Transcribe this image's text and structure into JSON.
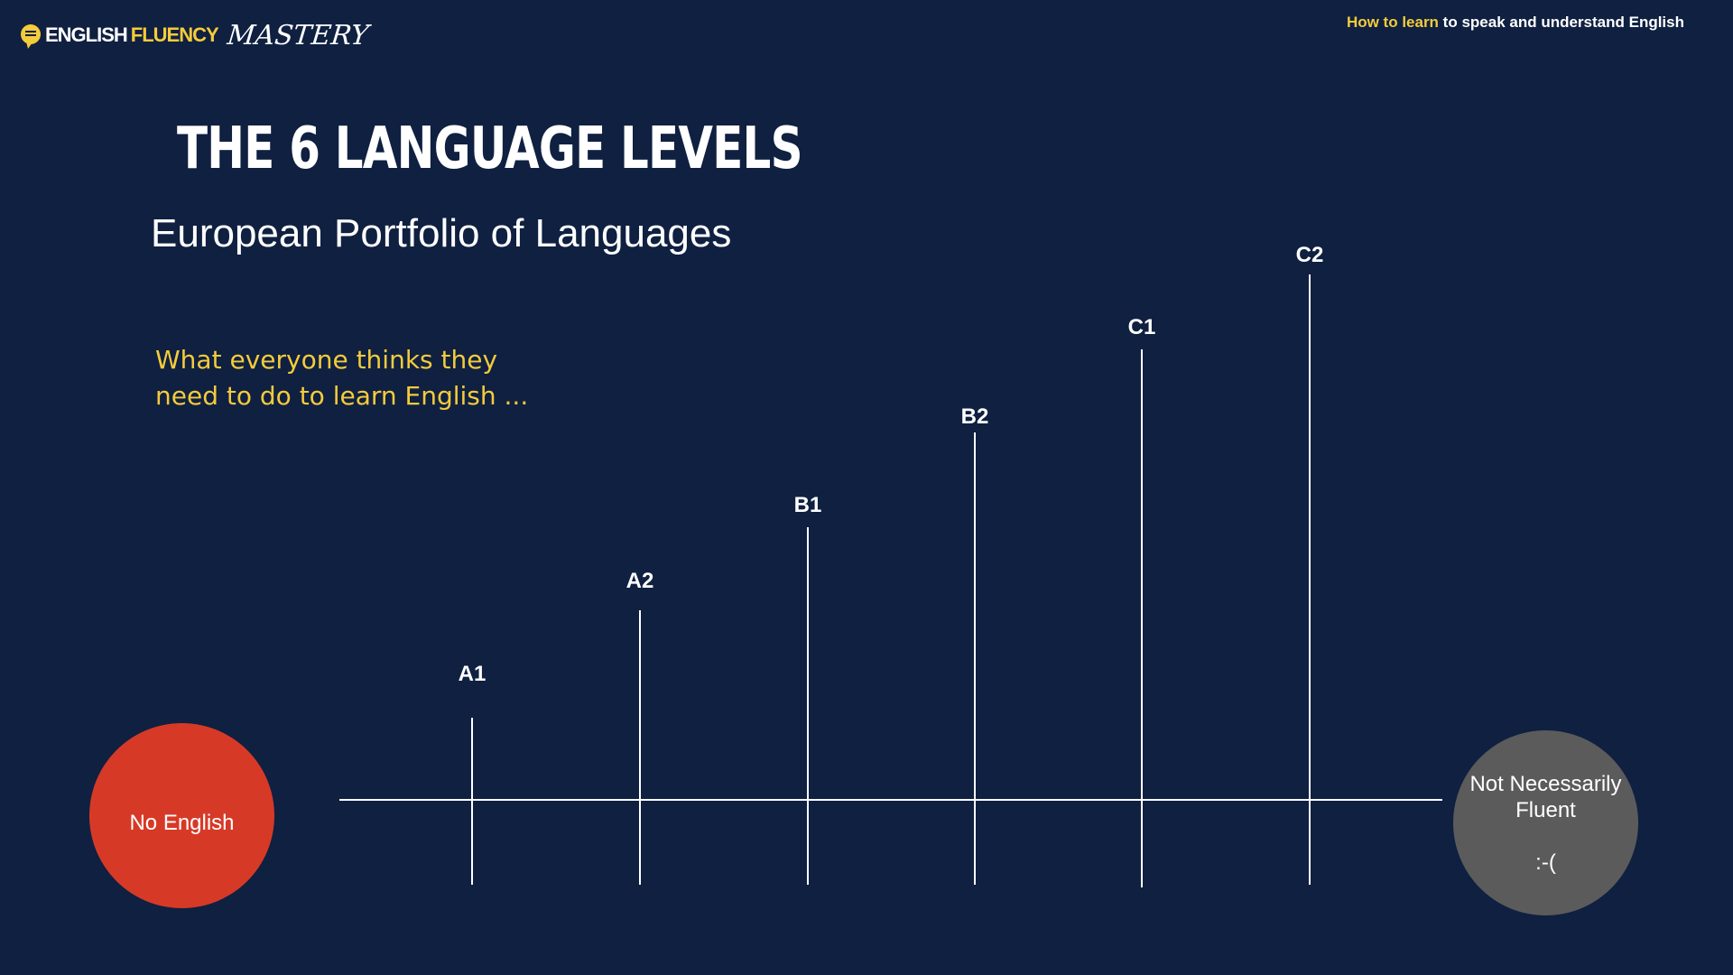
{
  "header": {
    "logo": {
      "icon": "speech-bubble-icon",
      "word1": "ENGLISH",
      "word2": "FLUENCY",
      "word3": "MASTERY"
    },
    "tagline": {
      "highlight": "How to learn",
      "rest": " to speak and understand English"
    }
  },
  "slide": {
    "title": "THE 6 LANGUAGE LEVELS",
    "subtitle": "European Portfolio of Languages",
    "annotation": {
      "line1": "What everyone thinks they",
      "line2": "need to do to learn English ..."
    }
  },
  "diagram": {
    "start": {
      "label": "No English",
      "color": "#d63a27"
    },
    "end": {
      "line1": "Not Necessarily",
      "line2": "Fluent",
      "line3": ":-(",
      "color": "#5b5b5b"
    },
    "levels": [
      {
        "label": "A1",
        "height_rank": 1
      },
      {
        "label": "A2",
        "height_rank": 2
      },
      {
        "label": "B1",
        "height_rank": 3
      },
      {
        "label": "B2",
        "height_rank": 4
      },
      {
        "label": "C1",
        "height_rank": 5
      },
      {
        "label": "C2",
        "height_rank": 6
      }
    ]
  },
  "colors": {
    "background": "#0f2041",
    "accent": "#f4cb3b",
    "text": "#ffffff",
    "line": "#ffffff"
  }
}
